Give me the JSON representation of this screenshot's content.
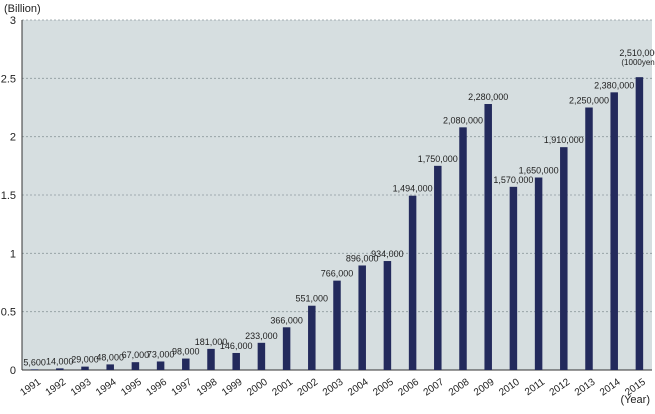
{
  "chart_data": {
    "type": "bar",
    "ylabel": "(Billion)",
    "xlabel": "(Year)",
    "ylim": [
      0,
      3
    ],
    "yticks": [
      "0",
      "0.5",
      "1",
      "1.5",
      "2",
      "2.5",
      "3"
    ],
    "grid": true,
    "categories": [
      "1991",
      "1992",
      "1993",
      "1994",
      "1995",
      "1996",
      "1997",
      "1998",
      "1999",
      "2000",
      "2001",
      "2002",
      "2003",
      "2004",
      "2005",
      "2006",
      "2007",
      "2008",
      "2009",
      "2010",
      "2011",
      "2012",
      "2013",
      "2014",
      "2015"
    ],
    "values": [
      0.0056,
      0.014,
      0.029,
      0.048,
      0.067,
      0.073,
      0.098,
      0.181,
      0.146,
      0.233,
      0.366,
      0.551,
      0.766,
      0.896,
      0.934,
      1.494,
      1.75,
      2.08,
      2.28,
      1.57,
      1.65,
      1.91,
      2.25,
      2.38,
      2.51
    ],
    "data_labels": [
      "5,600",
      "14,000",
      "29,000",
      "48,000",
      "67,000",
      "73,000",
      "98,000",
      "181,000",
      "146,000",
      "233,000",
      "366,000",
      "551,000",
      "766,000",
      "896,000",
      "934,000",
      "1,494,000",
      "1,750,000",
      "2,080,000",
      "2,280,000",
      "1,570,000",
      "1,650,000",
      "1,910,000",
      "2,250,000",
      "2,380,000",
      "2,510,000"
    ],
    "unit_note": "(1000yen)",
    "colors": {
      "plot_background": "#d6dee0",
      "bar": "#232a5c",
      "grid": "#8e9a9e",
      "text": "#222222"
    }
  }
}
